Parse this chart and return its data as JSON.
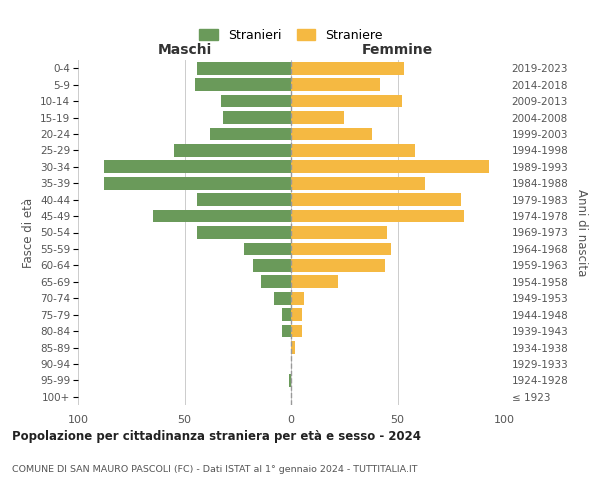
{
  "age_groups": [
    "100+",
    "95-99",
    "90-94",
    "85-89",
    "80-84",
    "75-79",
    "70-74",
    "65-69",
    "60-64",
    "55-59",
    "50-54",
    "45-49",
    "40-44",
    "35-39",
    "30-34",
    "25-29",
    "20-24",
    "15-19",
    "10-14",
    "5-9",
    "0-4"
  ],
  "birth_years": [
    "≤ 1923",
    "1924-1928",
    "1929-1933",
    "1934-1938",
    "1939-1943",
    "1944-1948",
    "1949-1953",
    "1954-1958",
    "1959-1963",
    "1964-1968",
    "1969-1973",
    "1974-1978",
    "1979-1983",
    "1984-1988",
    "1989-1993",
    "1994-1998",
    "1999-2003",
    "2004-2008",
    "2009-2013",
    "2014-2018",
    "2019-2023"
  ],
  "maschi": [
    0,
    1,
    0,
    0,
    4,
    4,
    8,
    14,
    18,
    22,
    44,
    65,
    44,
    88,
    88,
    55,
    38,
    32,
    33,
    45,
    44
  ],
  "femmine": [
    0,
    0,
    0,
    2,
    5,
    5,
    6,
    22,
    44,
    47,
    45,
    81,
    80,
    63,
    93,
    58,
    38,
    25,
    52,
    42,
    53
  ],
  "color_maschi": "#6a9a5a",
  "color_femmine": "#f5b942",
  "background_color": "#ffffff",
  "grid_color": "#cccccc",
  "title": "Popolazione per cittadinanza straniera per età e sesso - 2024",
  "subtitle": "COMUNE DI SAN MAURO PASCOLI (FC) - Dati ISTAT al 1° gennaio 2024 - TUTTITALIA.IT",
  "xlabel_left": "Maschi",
  "xlabel_right": "Femmine",
  "ylabel_left": "Fasce di età",
  "ylabel_right": "Anni di nascita",
  "legend_maschi": "Stranieri",
  "legend_femmine": "Straniere",
  "xlim": 100
}
